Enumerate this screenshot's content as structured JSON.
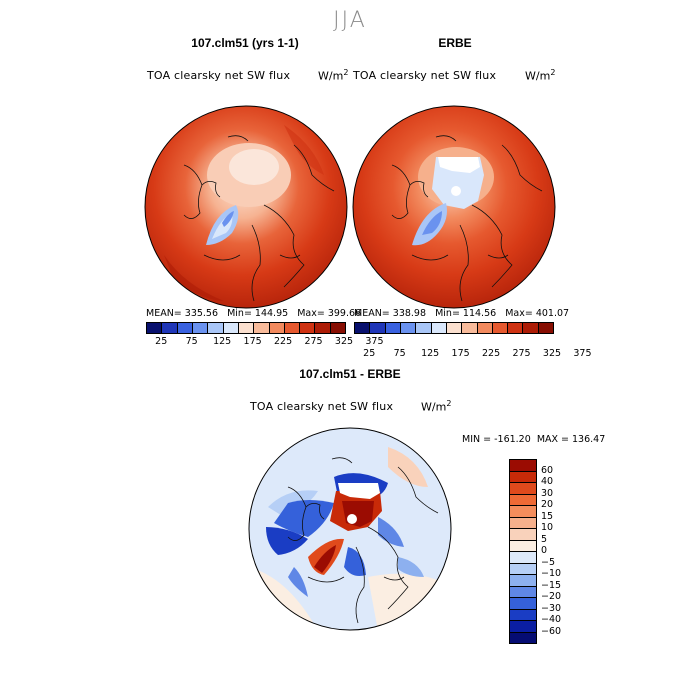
{
  "figure": {
    "season": "JJA"
  },
  "panels": [
    {
      "title": "107.clm51 (yrs 1-1)",
      "field": "TOA clearsky net SW flux",
      "units": "W/m",
      "units_exp": "2",
      "stats": "MEAN= 335.56   Min= 144.95   Max= 399.66"
    },
    {
      "title": "ERBE",
      "field": "TOA clearsky net SW flux",
      "units": "W/m",
      "units_exp": "2",
      "stats": "MEAN= 338.98   Min= 114.56   Max= 401.07"
    }
  ],
  "abs_colorbar": {
    "tick_labels": [
      "25",
      "75",
      "125",
      "175",
      "225",
      "275",
      "325",
      "375"
    ],
    "colors": [
      "#08106e",
      "#1f36b8",
      "#3a62e0",
      "#6a92ef",
      "#a9c6f7",
      "#d9e7fb",
      "#fbe0cf",
      "#f8bb9b",
      "#f28a5e",
      "#e6592f",
      "#cf3212",
      "#ad1c06",
      "#870e02"
    ]
  },
  "diff_panel": {
    "title": "107.clm51 - ERBE",
    "field": "TOA clearsky net SW flux",
    "units": "W/m",
    "units_exp": "2",
    "minmax": "MIN = -161.20  MAX = 136.47"
  },
  "diff_colorbar": {
    "labels": [
      "60",
      "40",
      "30",
      "20",
      "15",
      "10",
      "5",
      "0",
      "−5",
      "−10",
      "−15",
      "−20",
      "−30",
      "−40",
      "−60"
    ],
    "colors": [
      "#9b0c02",
      "#c82a08",
      "#e04a1c",
      "#ef6a35",
      "#f48d5c",
      "#f6b08c",
      "#f9d2bb",
      "#fbeee2",
      "#dde9fa",
      "#b6cff6",
      "#8db0ef",
      "#5f87e6",
      "#3561da",
      "#1a3dc4",
      "#0b1ea2",
      "#050c72"
    ]
  }
}
